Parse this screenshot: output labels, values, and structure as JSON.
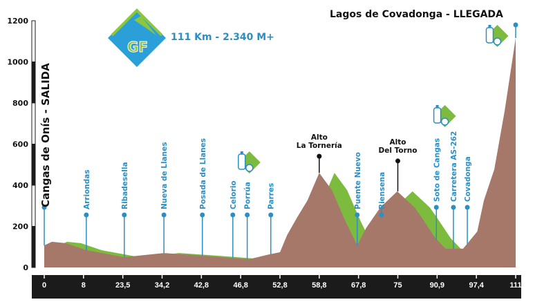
{
  "chart_data": {
    "type": "area",
    "title": "Lagos de Covadonga - LLEGADA",
    "subtitle": "111 Km - 2.340 M+",
    "start_label": "Cangas de Onís - SALIDA",
    "x_tick_labels": [
      "0",
      "8",
      "23,5",
      "34,2",
      "42,8",
      "46,8",
      "52,8",
      "58,8",
      "67,8",
      "75",
      "90,9",
      "97,4",
      "111"
    ],
    "x_ticks": [
      0,
      8,
      23.5,
      34.2,
      42.8,
      46.8,
      52.8,
      58.8,
      67.8,
      75,
      90.9,
      97.4,
      111
    ],
    "x_scale": "tick labels evenly spaced",
    "y_ticks": [
      0,
      200,
      400,
      600,
      800,
      1000,
      1200
    ],
    "ylim": [
      0,
      1200
    ],
    "xlim": [
      0,
      111
    ],
    "grid": false,
    "profile": [
      [
        0,
        107
      ],
      [
        1.55,
        125
      ],
      [
        4.4,
        118
      ],
      [
        9.1,
        84
      ],
      [
        23.9,
        50
      ],
      [
        34.6,
        70
      ],
      [
        42.9,
        57
      ],
      [
        48.1,
        40
      ],
      [
        51.2,
        64
      ],
      [
        52.8,
        74
      ],
      [
        53.9,
        158
      ],
      [
        55.4,
        242
      ],
      [
        57.0,
        326
      ],
      [
        58.8,
        460
      ],
      [
        61.7,
        376
      ],
      [
        64.8,
        225
      ],
      [
        67.5,
        108
      ],
      [
        69.2,
        192
      ],
      [
        71.8,
        292
      ],
      [
        74.9,
        370
      ],
      [
        81.8,
        292
      ],
      [
        84.7,
        242
      ],
      [
        90.3,
        141
      ],
      [
        92.3,
        91
      ],
      [
        95.2,
        91
      ],
      [
        97.7,
        175
      ],
      [
        100,
        326
      ],
      [
        103.6,
        477
      ],
      [
        107.2,
        763
      ],
      [
        111,
        1116
      ]
    ],
    "waypoints": [
      {
        "name": "Arriondas",
        "km": 9.1
      },
      {
        "name": "Ribadesella",
        "km": 23.9
      },
      {
        "name": "Nueva de Llanes",
        "km": 34.6
      },
      {
        "name": "Posada de Llanes",
        "km": 42.9
      },
      {
        "name": "Celorio",
        "km": 46.0
      },
      {
        "name": "Porrúa",
        "km": 47.8
      },
      {
        "name": "Parres",
        "km": 51.4
      },
      {
        "name": "Puente Nuevo",
        "km": 67.5
      },
      {
        "name": "Riensena",
        "km": 72.0
      },
      {
        "name": "Soto de Cangas",
        "km": 90.6
      },
      {
        "name": "Carretera AS-262",
        "km": 93.6
      },
      {
        "name": "Covadonga",
        "km": 95.9
      }
    ],
    "summits": [
      {
        "line1": "Alto",
        "line2": "La Tornería",
        "km": 58.8,
        "elev": 460
      },
      {
        "line1": "Alto",
        "line2": "Del Torno",
        "km": 75,
        "elev": 370
      }
    ],
    "feed_zones_km": [
      47.5,
      91.5,
      108
    ],
    "colors": {
      "terrain": "#a6786a",
      "descent": "#7dbb3f",
      "waypoint": "#2b8fc4",
      "axis_bar": "#1b1b1b"
    }
  },
  "logo": {
    "text": "GF",
    "colors": {
      "blue": "#2b9fd8",
      "green": "#8cc63f"
    }
  }
}
